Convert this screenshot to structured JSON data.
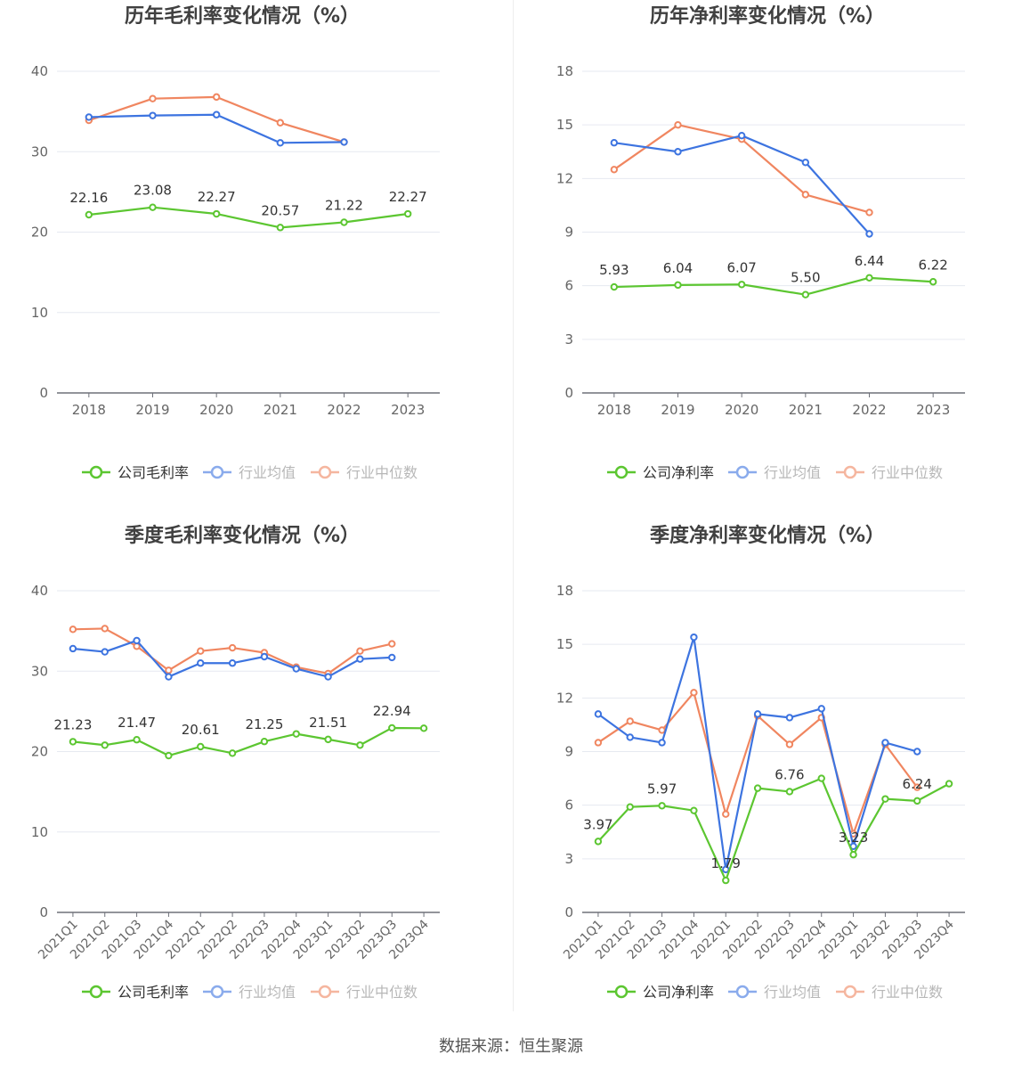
{
  "source": "数据来源：恒生聚源",
  "colors": {
    "company": "#5cc631",
    "avg": "#3d74e0",
    "median": "#f08660",
    "grid": "#e6e9f0",
    "axis": "#6e7079",
    "text": "#666666",
    "title": "#404040"
  },
  "legend_labels": {
    "avg": "行业均值",
    "median": "行业中位数"
  },
  "chart_data": [
    {
      "type": "line",
      "title": "历年毛利率变化情况（%）",
      "categories": [
        "2018",
        "2019",
        "2020",
        "2021",
        "2022",
        "2023"
      ],
      "ylim": [
        0,
        40
      ],
      "yticks": [
        0,
        10,
        20,
        30,
        40
      ],
      "legend_position": "bottom",
      "grid": true,
      "series": [
        {
          "name": "公司毛利率",
          "values": [
            22.16,
            23.08,
            22.27,
            20.57,
            21.22,
            22.27
          ],
          "labels": [
            "22.16",
            "23.08",
            "22.27",
            "20.57",
            "21.22",
            "22.27"
          ]
        },
        {
          "name": "行业均值",
          "values": [
            34.3,
            34.5,
            34.6,
            31.1,
            31.2,
            null
          ]
        },
        {
          "name": "行业中位数",
          "values": [
            33.9,
            36.6,
            36.8,
            33.6,
            31.2,
            null
          ]
        }
      ]
    },
    {
      "type": "line",
      "title": "历年净利率变化情况（%）",
      "categories": [
        "2018",
        "2019",
        "2020",
        "2021",
        "2022",
        "2023"
      ],
      "ylim": [
        0,
        18
      ],
      "yticks": [
        0,
        3,
        6,
        9,
        12,
        15,
        18
      ],
      "legend_position": "bottom",
      "grid": true,
      "series": [
        {
          "name": "公司净利率",
          "values": [
            5.93,
            6.04,
            6.07,
            5.5,
            6.44,
            6.22
          ],
          "labels": [
            "5.93",
            "6.04",
            "6.07",
            "5.50",
            "6.44",
            "6.22"
          ]
        },
        {
          "name": "行业均值",
          "values": [
            14.0,
            13.5,
            14.4,
            12.9,
            8.9,
            null
          ]
        },
        {
          "name": "行业中位数",
          "values": [
            12.5,
            15.0,
            14.2,
            11.1,
            10.1,
            null
          ]
        }
      ]
    },
    {
      "type": "line",
      "title": "季度毛利率变化情况（%）",
      "categories": [
        "2021Q1",
        "2021Q2",
        "2021Q3",
        "2021Q4",
        "2022Q1",
        "2022Q2",
        "2022Q3",
        "2022Q4",
        "2023Q1",
        "2023Q2",
        "2023Q3",
        "2023Q4"
      ],
      "ylim": [
        0,
        40
      ],
      "yticks": [
        0,
        10,
        20,
        30,
        40
      ],
      "legend_position": "bottom",
      "grid": true,
      "series": [
        {
          "name": "公司毛利率",
          "values": [
            21.23,
            20.8,
            21.47,
            19.5,
            20.61,
            19.8,
            21.25,
            22.2,
            21.51,
            20.8,
            22.94,
            22.9
          ],
          "labels": [
            "21.23",
            "",
            "21.47",
            "",
            "20.61",
            "",
            "21.25",
            "",
            "21.51",
            "",
            "22.94",
            ""
          ]
        },
        {
          "name": "行业均值",
          "values": [
            32.8,
            32.4,
            33.8,
            29.3,
            31.0,
            31.0,
            31.8,
            30.3,
            29.3,
            31.5,
            31.7,
            null
          ]
        },
        {
          "name": "行业中位数",
          "values": [
            35.2,
            35.3,
            33.1,
            30.1,
            32.5,
            32.9,
            32.3,
            30.5,
            29.7,
            32.5,
            33.4,
            null
          ]
        }
      ]
    },
    {
      "type": "line",
      "title": "季度净利率变化情况（%）",
      "categories": [
        "2021Q1",
        "2021Q2",
        "2021Q3",
        "2021Q4",
        "2022Q1",
        "2022Q2",
        "2022Q3",
        "2022Q4",
        "2023Q1",
        "2023Q2",
        "2023Q3",
        "2023Q4"
      ],
      "ylim": [
        0,
        18
      ],
      "yticks": [
        0,
        3,
        6,
        9,
        12,
        15,
        18
      ],
      "legend_position": "bottom",
      "grid": true,
      "series": [
        {
          "name": "公司净利率",
          "values": [
            3.97,
            5.9,
            5.97,
            5.7,
            1.79,
            6.95,
            6.76,
            7.5,
            3.23,
            6.35,
            6.24,
            7.2
          ],
          "labels": [
            "3.97",
            "",
            "5.97",
            "",
            "1.79",
            "",
            "6.76",
            "",
            "3.23",
            "",
            "6.24",
            ""
          ]
        },
        {
          "name": "行业均值",
          "values": [
            11.1,
            9.8,
            9.5,
            15.4,
            2.4,
            11.1,
            10.9,
            11.4,
            3.7,
            9.5,
            9.0,
            null
          ]
        },
        {
          "name": "行业中位数",
          "values": [
            9.5,
            10.7,
            10.2,
            12.3,
            5.5,
            11.0,
            9.4,
            10.9,
            4.4,
            9.4,
            7.0,
            null
          ]
        }
      ]
    }
  ]
}
